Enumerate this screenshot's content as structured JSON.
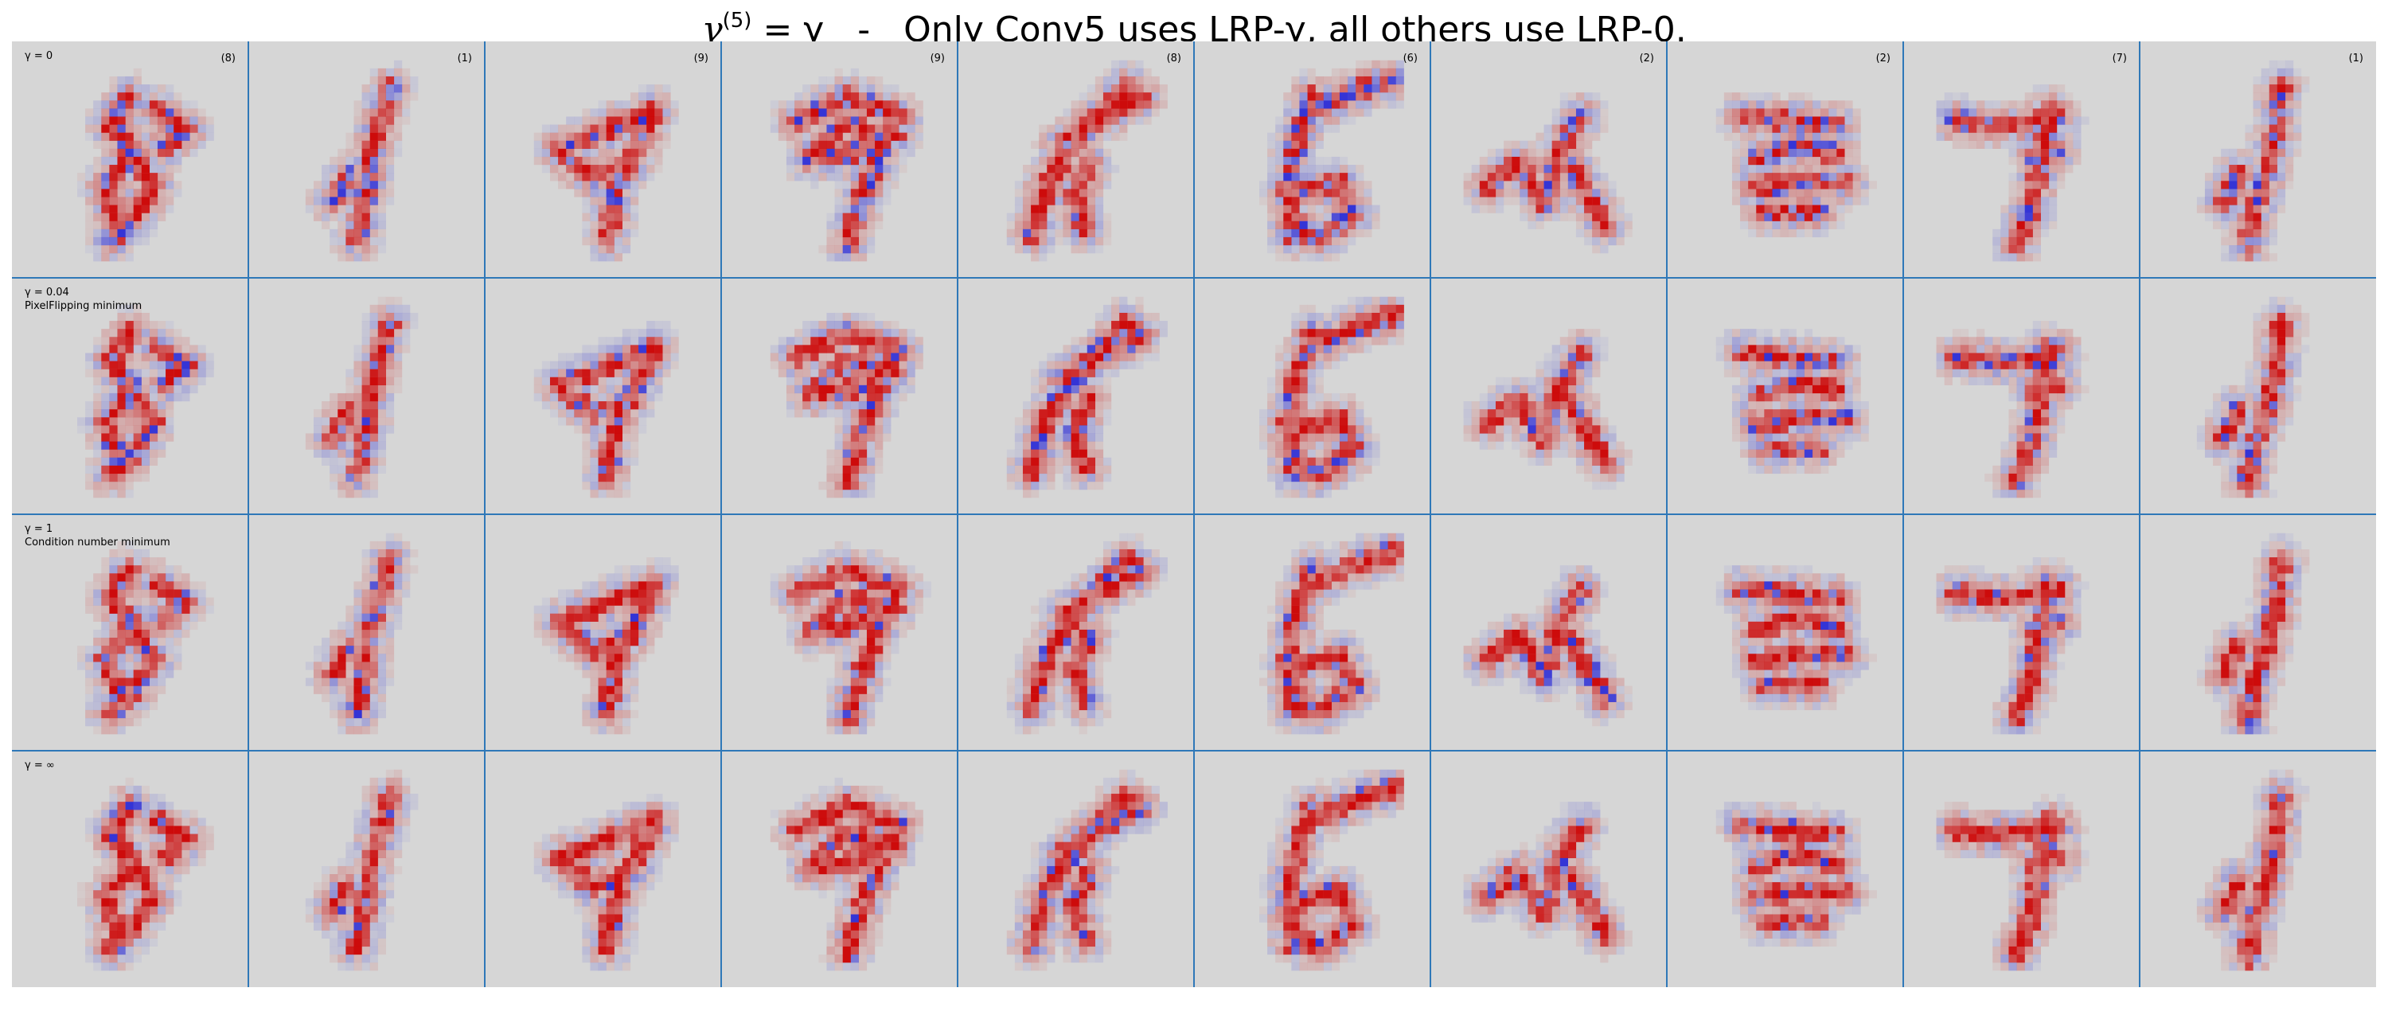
{
  "figure": {
    "title_gamma_symbol": "γ",
    "title_superscript": "(5)",
    "title_rest": " = γ   -   Only Conv5 uses LRP-γ, all others use LRP-0.",
    "column_labels": [
      "(8)",
      "(1)",
      "(9)",
      "(9)",
      "(8)",
      "(6)",
      "(2)",
      "(2)",
      "(7)",
      "(1)"
    ],
    "rows": [
      {
        "label": "γ = 0",
        "sublabel": ""
      },
      {
        "label": "γ = 0.04",
        "sublabel": "PixelFlipping minimum"
      },
      {
        "label": "γ = 1",
        "sublabel": "Condition number minimum"
      },
      {
        "label": "γ = ∞",
        "sublabel": ""
      }
    ],
    "colors": {
      "background": "#d6d6d6",
      "positive": "#cc0000",
      "negative": "#2b2bd6",
      "grid_line": "#2f78b8"
    }
  }
}
